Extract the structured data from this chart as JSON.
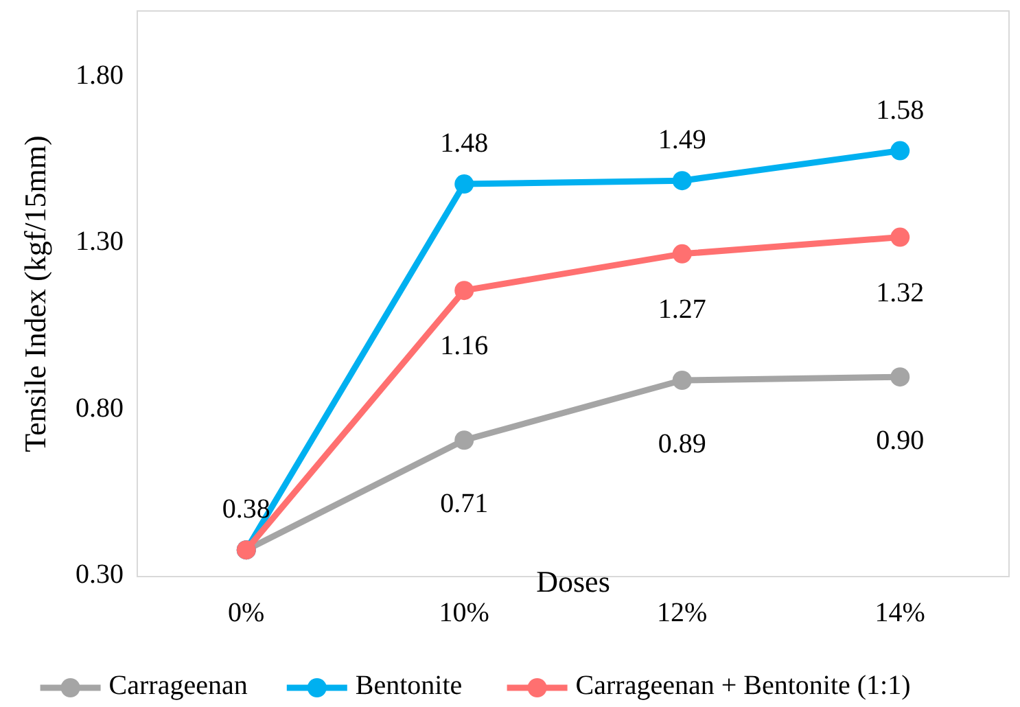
{
  "chart_data": {
    "type": "line",
    "xlabel": "Doses",
    "ylabel": "Tensile Index (kgf/15mm)",
    "categories": [
      "0%",
      "10%",
      "12%",
      "14%"
    ],
    "ylim": [
      0.3,
      2.0
    ],
    "yticks": [
      {
        "value": 0.3,
        "label": "0.30"
      },
      {
        "value": 0.8,
        "label": "0.80"
      },
      {
        "value": 1.3,
        "label": "1.30"
      },
      {
        "value": 1.8,
        "label": "1.80"
      }
    ],
    "grid": false,
    "legend": "bottom",
    "marker": "circle",
    "series": [
      {
        "name": "Carrageenan",
        "color": "#a5a5a5",
        "values": [
          0.38,
          0.71,
          0.89,
          0.9
        ],
        "value_labels": [
          "0.38",
          "0.71",
          "0.89",
          "0.90"
        ]
      },
      {
        "name": "Bentonite",
        "color": "#00b0f0",
        "values": [
          0.38,
          1.48,
          1.49,
          1.58
        ],
        "value_labels": [
          null,
          "1.48",
          "1.49",
          "1.58"
        ]
      },
      {
        "name": "Carrageenan + Bentonite (1:1)",
        "color": "#ff7070",
        "values": [
          0.38,
          1.16,
          1.27,
          1.32
        ],
        "value_labels": [
          null,
          "1.16",
          "1.27",
          "1.32"
        ]
      }
    ]
  }
}
